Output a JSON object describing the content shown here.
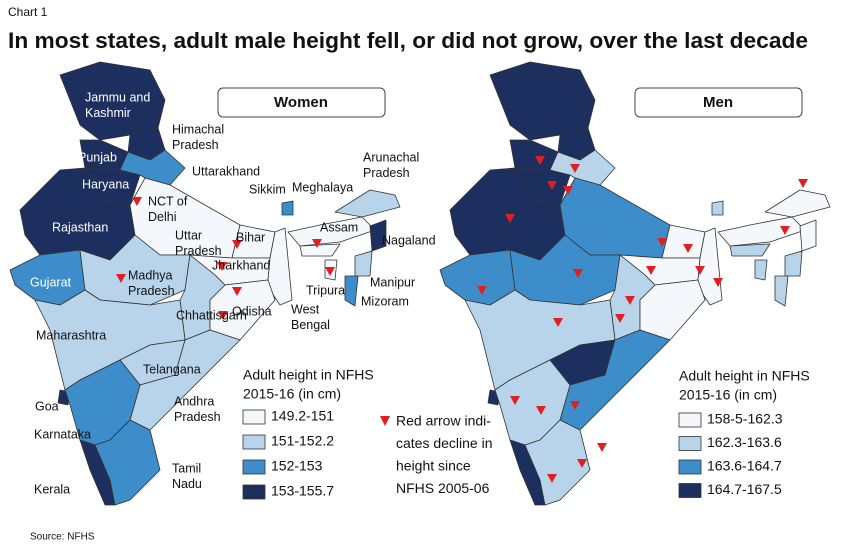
{
  "header": {
    "label": "Chart 1",
    "title": "In most states, adult male height fell, or did not grow, over the last decade"
  },
  "women": {
    "title": "Women",
    "legend": {
      "title": [
        "Adult height in NFHS",
        "2015-16 (in cm)"
      ],
      "items": [
        {
          "label": "149.2-151",
          "color": "#f4f8fc"
        },
        {
          "label": "151-152.2",
          "color": "#b8d4eb"
        },
        {
          "label": "152-153",
          "color": "#3c8dca"
        },
        {
          "label": "153-155.7",
          "color": "#1c2f5e"
        }
      ]
    },
    "labels": [
      [
        "Jammu and",
        "Kashmir"
      ],
      [
        "Himachal",
        "Pradesh"
      ],
      [
        "Punjab"
      ],
      [
        "Uttarakhand"
      ],
      [
        "Haryana"
      ],
      [
        "NCT of",
        "Delhi"
      ],
      [
        "Rajasthan"
      ],
      [
        "Uttar",
        "Pradesh"
      ],
      [
        "Bihar"
      ],
      [
        "Sikkim"
      ],
      [
        "Meghalaya"
      ],
      [
        "Arunachal",
        "Pradesh"
      ],
      [
        "Assam"
      ],
      [
        "Nagaland"
      ],
      [
        "West",
        "Bengal"
      ],
      [
        "Jharkhand"
      ],
      [
        "Manipur"
      ],
      [
        "Tripura"
      ],
      [
        "Mizoram"
      ],
      [
        "Madhya",
        "Pradesh"
      ],
      [
        "Gujarat"
      ],
      [
        "Chhattisgarh"
      ],
      [
        "Odisha"
      ],
      [
        "Maharashtra"
      ],
      [
        "Telangana"
      ],
      [
        "Goa"
      ],
      [
        "Karnataka"
      ],
      [
        "Andhra",
        "Pradesh"
      ],
      [
        "Tamil",
        "Nadu"
      ],
      [
        "Kerala"
      ]
    ]
  },
  "men": {
    "title": "Men",
    "legend": {
      "title": [
        "Adult height in NFHS",
        "2015-16 (in cm)"
      ],
      "items": [
        {
          "label": "158-5-162.3",
          "color": "#f4f8fc"
        },
        {
          "label": "162.3-163.6",
          "color": "#b8d4eb"
        },
        {
          "label": "163.6-164.7",
          "color": "#3c8dca"
        },
        {
          "label": "164.7-167.5",
          "color": "#1c2f5e"
        }
      ]
    }
  },
  "note": [
    "Red arrow indi-",
    "cates decline in",
    "height since",
    "NFHS 2005-06"
  ],
  "source": "Source: NFHS"
}
